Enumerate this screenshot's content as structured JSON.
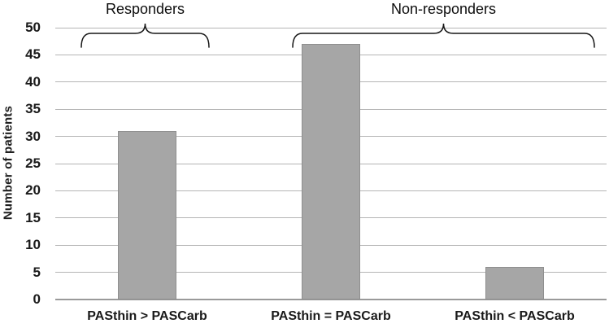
{
  "chart_data": {
    "type": "bar",
    "categories": [
      "PASthin > PASCarb",
      "PASthin = PASCarb",
      "PASthin < PASCarb"
    ],
    "values": [
      31,
      47,
      6
    ],
    "title": "",
    "xlabel": "",
    "ylabel": "Number of patients",
    "ylim": [
      0,
      50
    ],
    "ytick_step": 5,
    "ytick_labels": [
      "0",
      "5",
      "10",
      "15",
      "20",
      "25",
      "30",
      "35",
      "40",
      "45",
      "50"
    ],
    "grid": "horizontal",
    "legend": "none",
    "bar_color": "#a6a6a6",
    "bar_border_color": "#8f8f8f",
    "gridline_color": "#b5b5b5",
    "text_color": "#1a1a1a",
    "annotations": [
      {
        "label": "Responders",
        "from_category": 0,
        "to_category": 0
      },
      {
        "label": "Non-responders",
        "from_category": 1,
        "to_category": 2
      }
    ]
  }
}
